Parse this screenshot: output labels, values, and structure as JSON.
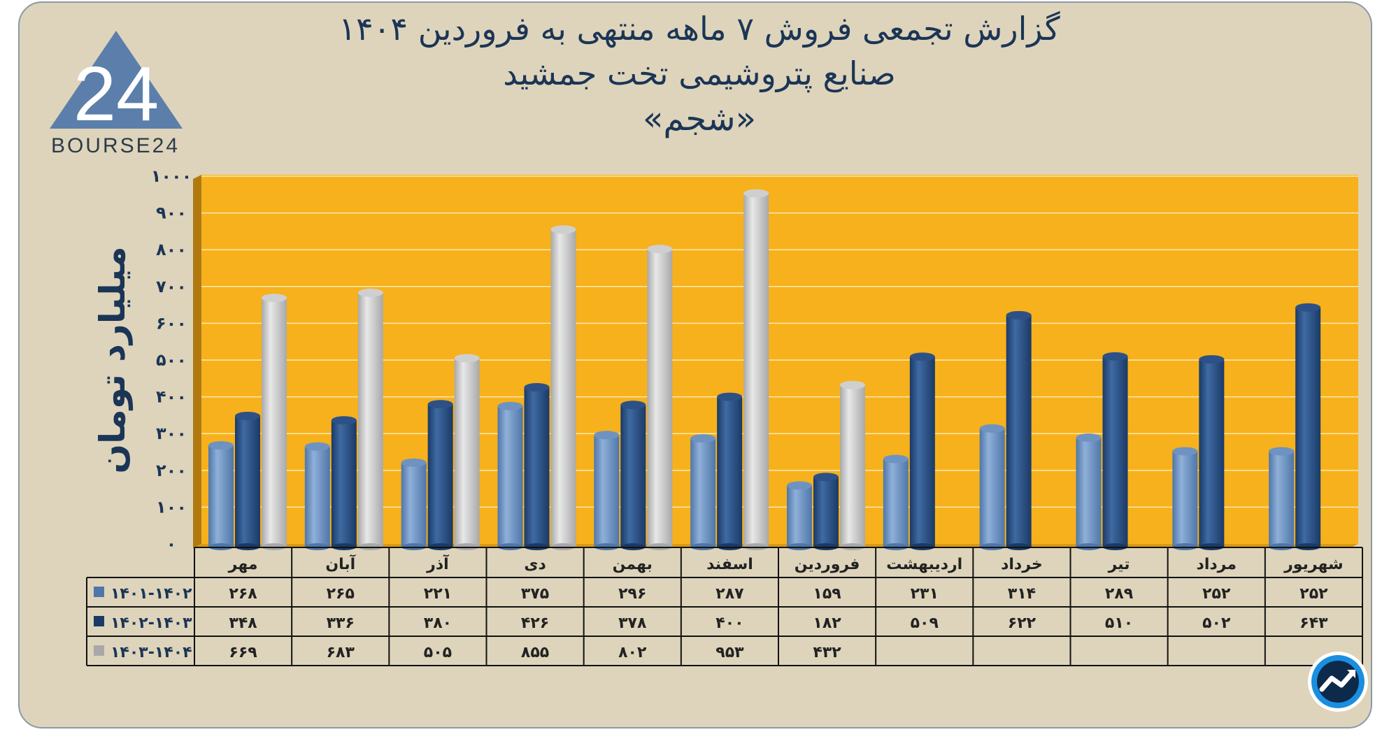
{
  "title_lines": [
    "گزارش تجمعی فروش ۷ ماهه منتهی به فروردین ۱۴۰۴",
    "صنایع پتروشیمی تخت جمشید",
    "«شجم»"
  ],
  "logo": {
    "text": "BOURSE24",
    "mark": "24"
  },
  "colors": {
    "background": "#ddd4bb",
    "plot_area": "#f7b11c",
    "series_1": "#4e76a9",
    "series_2": "#1a3a66",
    "series_3": "#a8a8a8",
    "text": "#1b3556"
  },
  "chart_data": {
    "type": "bar",
    "ylabel": "میلیارد تومان",
    "ylim": [
      0,
      1000
    ],
    "y_ticks": [
      "۰",
      "۱۰۰",
      "۲۰۰",
      "۳۰۰",
      "۴۰۰",
      "۵۰۰",
      "۶۰۰",
      "۷۰۰",
      "۸۰۰",
      "۹۰۰",
      "۱۰۰۰"
    ],
    "y_tick_values": [
      0,
      100,
      200,
      300,
      400,
      500,
      600,
      700,
      800,
      900,
      1000
    ],
    "grid": true,
    "legend": "table-left",
    "categories": [
      "مهر",
      "آبان",
      "آذر",
      "دی",
      "بهمن",
      "اسفند",
      "فروردین",
      "اردیبهشت",
      "خرداد",
      "تیر",
      "مرداد",
      "شهریور"
    ],
    "series": [
      {
        "name": "۱۴۰۱-۱۴۰۲",
        "color": "#4e76a9",
        "values": [
          268,
          265,
          221,
          375,
          296,
          287,
          159,
          231,
          314,
          289,
          252,
          252
        ],
        "labels": [
          "۲۶۸",
          "۲۶۵",
          "۲۲۱",
          "۳۷۵",
          "۲۹۶",
          "۲۸۷",
          "۱۵۹",
          "۲۳۱",
          "۳۱۴",
          "۲۸۹",
          "۲۵۲",
          "۲۵۲"
        ]
      },
      {
        "name": "۱۴۰۲-۱۴۰۳",
        "color": "#1a3a66",
        "values": [
          348,
          336,
          380,
          426,
          378,
          400,
          182,
          509,
          622,
          510,
          502,
          643
        ],
        "labels": [
          "۳۴۸",
          "۳۳۶",
          "۳۸۰",
          "۴۲۶",
          "۳۷۸",
          "۴۰۰",
          "۱۸۲",
          "۵۰۹",
          "۶۲۲",
          "۵۱۰",
          "۵۰۲",
          "۶۴۳"
        ]
      },
      {
        "name": "۱۴۰۳-۱۴۰۴",
        "color": "#a8a8a8",
        "values": [
          669,
          683,
          505,
          855,
          802,
          953,
          432,
          null,
          null,
          null,
          null,
          null
        ],
        "labels": [
          "۶۶۹",
          "۶۸۳",
          "۵۰۵",
          "۸۵۵",
          "۸۰۲",
          "۹۵۳",
          "۴۳۲",
          "",
          "",
          "",
          "",
          ""
        ]
      }
    ]
  }
}
